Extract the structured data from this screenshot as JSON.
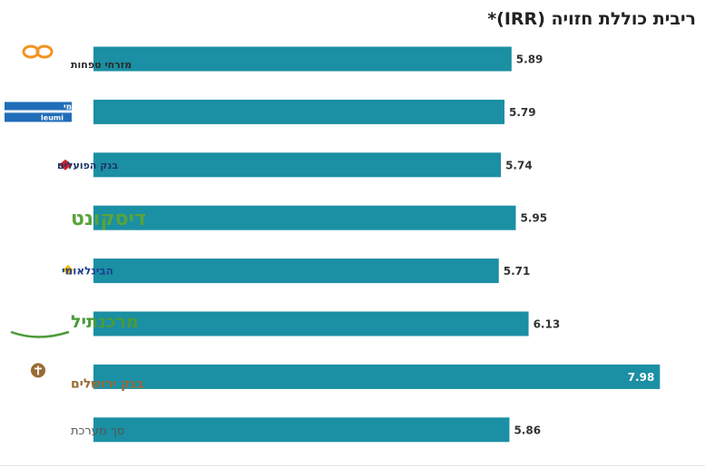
{
  "chart_data": {
    "type": "bar",
    "orientation": "horizontal",
    "title": "ריבית כוללת חזויה (IRR)*",
    "categories": [
      "מזרחי טפחות",
      "לאומי",
      "בנק הפועלים",
      "דיסקונט",
      "הבינלאומי",
      "מרכנתיל",
      "בנק ירושלים",
      "סך מערכת"
    ],
    "logo_text": [
      "leumi"
    ],
    "values": [
      5.89,
      5.79,
      5.74,
      5.95,
      5.71,
      6.13,
      7.98,
      5.86
    ],
    "value_labels": [
      "5.89",
      "5.79",
      "5.74",
      "5.95",
      "5.71",
      "6.13",
      "7.98",
      "5.86"
    ],
    "xlim": [
      0,
      8.5
    ],
    "grid": false,
    "bar_color": "#1b8fa3",
    "highlight_index": 6
  },
  "colors": {
    "mizrahi": "#f39321",
    "leumi": "#1f6db8",
    "hapoalim": "#d0202f",
    "discount": "#5aa33a",
    "beinleumi": "#1d3e8f",
    "beinleumi_accent": "#f5b400",
    "mercantile": "#4a9a3a",
    "jerusalem": "#9a6a34",
    "total": "#555555"
  }
}
